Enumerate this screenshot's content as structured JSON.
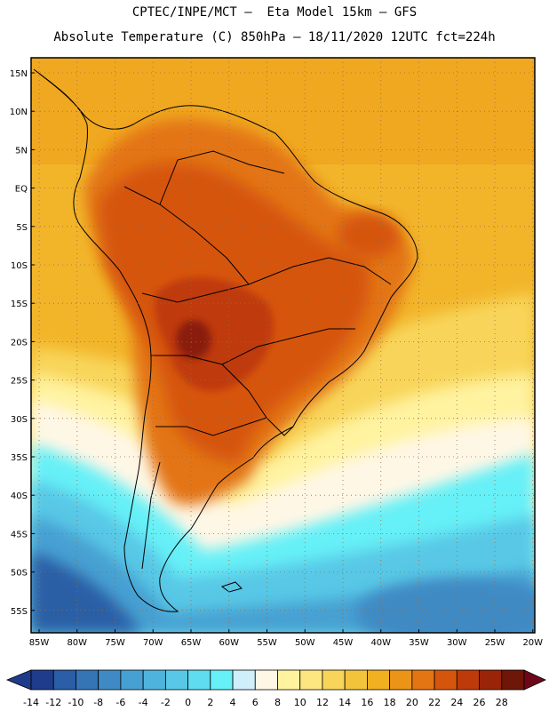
{
  "title_line1": "CPTEC/INPE/MCT –  Eta Model 15km – GFS",
  "title_line2": "Absolute Temperature (C) 850hPa – 18/11/2020 12UTC fct=224h",
  "lat_labels": [
    "15N",
    "10N",
    "5N",
    "EQ",
    "5S",
    "10S",
    "15S",
    "20S",
    "25S",
    "30S",
    "35S",
    "40S",
    "45S",
    "50S",
    "55S"
  ],
  "lon_labels": [
    "85W",
    "80W",
    "75W",
    "70W",
    "65W",
    "60W",
    "55W",
    "50W",
    "45W",
    "40W",
    "35W",
    "30W",
    "25W",
    "20W"
  ],
  "colorbar": {
    "labels": [
      "-14",
      "-12",
      "-10",
      "-8",
      "-6",
      "-4",
      "-2",
      "0",
      "2",
      "4",
      "6",
      "8",
      "10",
      "12",
      "14",
      "16",
      "18",
      "20",
      "22",
      "24",
      "26",
      "28"
    ],
    "colors": [
      "#1f3c8c",
      "#2a5ea6",
      "#3574b5",
      "#3f8ac4",
      "#47a0d2",
      "#4fb4dc",
      "#58c8e6",
      "#5fdcef",
      "#66f0f7",
      "#cfeffb",
      "#fff7e6",
      "#fff3a0",
      "#fde680",
      "#f8d55a",
      "#f2c43c",
      "#f0b020",
      "#ec9418",
      "#e37512",
      "#d6550c",
      "#bf3a0a",
      "#9a2408",
      "#6e1608"
    ]
  },
  "colors": {
    "ocean_warm": "#f0b020",
    "land_hot": "#d6550c",
    "land_max": "#8a1a10",
    "cold_deep": "#2a5ea6",
    "cyan": "#5fdcef",
    "pale": "#fff7e6",
    "yellow": "#fde680"
  }
}
